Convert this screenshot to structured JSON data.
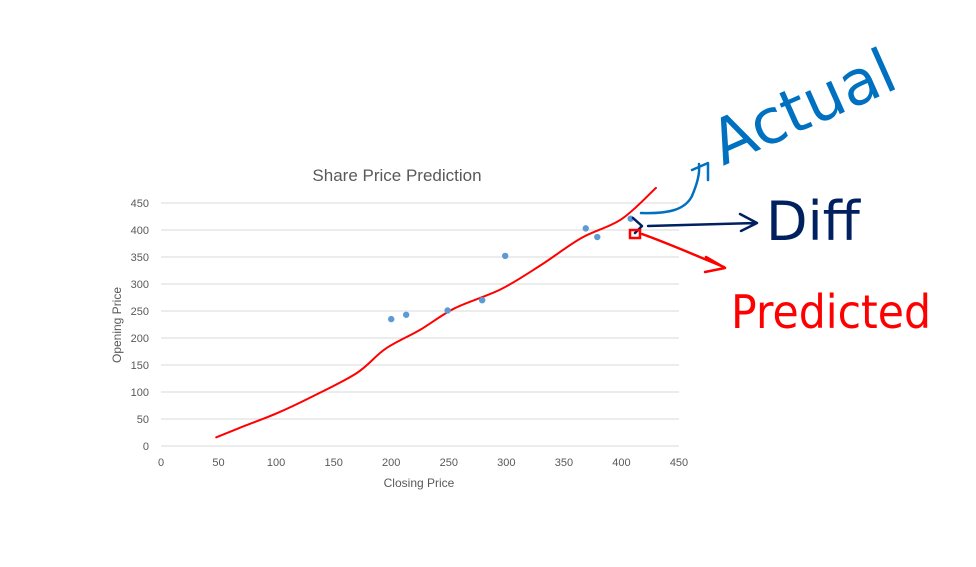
{
  "chart_data": {
    "type": "scatter",
    "title": "Share Price Prediction",
    "xlabel": "Closing Price",
    "ylabel": "Opening Price",
    "xlim": [
      0,
      450
    ],
    "ylim": [
      0,
      450
    ],
    "x_ticks": [
      0,
      50,
      100,
      150,
      200,
      250,
      300,
      350,
      400,
      450
    ],
    "y_ticks": [
      0,
      50,
      100,
      150,
      200,
      250,
      300,
      350,
      400,
      450
    ],
    "grid": "horizontal",
    "series": [
      {
        "color": "#5b9bd5",
        "points": [
          {
            "x": 200,
            "y": 235
          },
          {
            "x": 213,
            "y": 243
          },
          {
            "x": 249,
            "y": 251
          },
          {
            "x": 279,
            "y": 270
          },
          {
            "x": 299,
            "y": 352
          },
          {
            "x": 369,
            "y": 403
          },
          {
            "x": 379,
            "y": 387
          },
          {
            "x": 408,
            "y": 421
          }
        ]
      }
    ],
    "trendline": {
      "color": "#ff0000",
      "points": [
        {
          "x": 48,
          "y": 16
        },
        {
          "x": 70,
          "y": 35
        },
        {
          "x": 100,
          "y": 60
        },
        {
          "x": 130,
          "y": 90
        },
        {
          "x": 170,
          "y": 135
        },
        {
          "x": 195,
          "y": 180
        },
        {
          "x": 225,
          "y": 215
        },
        {
          "x": 255,
          "y": 255
        },
        {
          "x": 295,
          "y": 290
        },
        {
          "x": 330,
          "y": 335
        },
        {
          "x": 365,
          "y": 385
        },
        {
          "x": 400,
          "y": 420
        },
        {
          "x": 430,
          "y": 478
        }
      ]
    }
  },
  "annotations": {
    "actual": {
      "text": "Actual",
      "color": "#0070c0"
    },
    "diff": {
      "text": "Diff",
      "color": "#002060"
    },
    "predicted": {
      "text": "Predicted",
      "color": "#ff0000"
    }
  }
}
